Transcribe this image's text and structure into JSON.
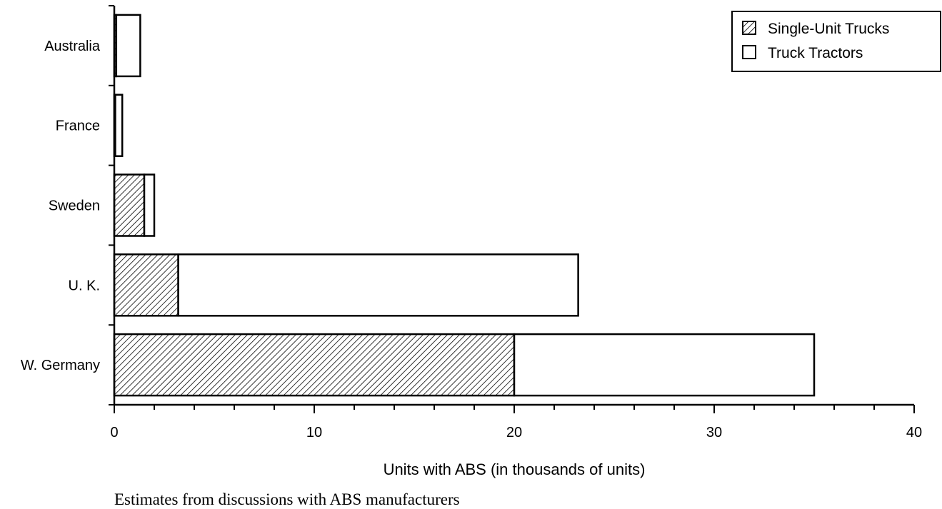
{
  "chart_data": {
    "type": "bar",
    "orientation": "horizontal",
    "stacked": true,
    "categories": [
      "Australia",
      "France",
      "Sweden",
      "U. K.",
      "W. Germany"
    ],
    "series": [
      {
        "name": "Single-Unit Trucks",
        "values": [
          0.1,
          0.05,
          1.5,
          3.2,
          20.0
        ],
        "pattern": "diagonal-hatch"
      },
      {
        "name": "Truck Tractors",
        "values": [
          1.2,
          0.35,
          0.5,
          20.0,
          15.0
        ],
        "pattern": "none"
      }
    ],
    "xlabel": "Units with ABS (in thousands of units)",
    "xlim": [
      0,
      40
    ],
    "xticks": [
      "0",
      "10",
      "20",
      "30",
      "40"
    ],
    "legend_position": "top-right",
    "grid": false,
    "footnote": "Estimates from discussions with ABS manufacturers",
    "colors": {
      "ink": "#000000",
      "background": "#ffffff"
    }
  }
}
